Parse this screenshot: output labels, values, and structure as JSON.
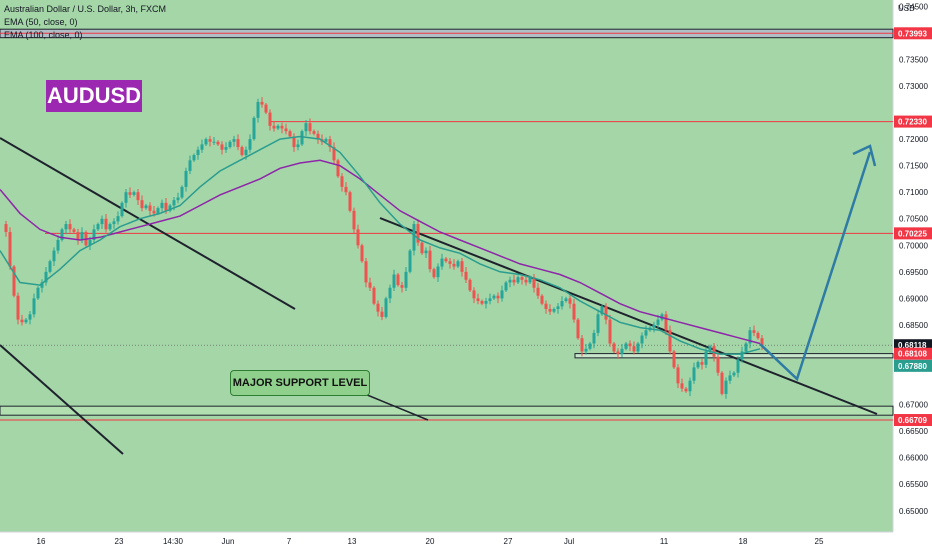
{
  "legend": {
    "title": "Australian Dollar / U.S. Dollar, 3h, FXCM",
    "ema50": "EMA (50, close, 0)",
    "ema100": "EMA (100, close, 0)"
  },
  "symbol_badge": "AUDUSD",
  "annotation": "MAJOR SUPPORT LEVEL",
  "currency": "USD",
  "countdown": "02:30:06",
  "colors": {
    "bullish": "#26a69a",
    "bearish": "#ef5350",
    "ema50": "#2a9d8f",
    "ema100": "#8e24aa",
    "level": "#f23645",
    "trendline": "#1e222d",
    "arrow": "#2e7ba5",
    "background": "#a5d6a7"
  },
  "chart_data": {
    "type": "candlestick",
    "ylim": [
      0.646,
      0.7462
    ],
    "y_ticks": [
      "0.74500",
      "0.73500",
      "0.73000",
      "0.72000",
      "0.71500",
      "0.71000",
      "0.70500",
      "0.70000",
      "0.69500",
      "0.69000",
      "0.68500",
      "0.68000",
      "0.67000",
      "0.66500",
      "0.66000",
      "0.65500",
      "0.65000"
    ],
    "x_ticks": [
      "16",
      "23",
      "14:30",
      "Jun",
      "7",
      "13",
      "20",
      "27",
      "Jul",
      "11",
      "18",
      "25"
    ],
    "price_labels": [
      {
        "text": "0.73993",
        "value": 0.73993,
        "color": "#f23645"
      },
      {
        "text": "0.72330",
        "value": 0.7233,
        "color": "#f23645"
      },
      {
        "text": "0.70225",
        "value": 0.70225,
        "color": "#f23645"
      },
      {
        "text": "0.68118",
        "value": 0.68118,
        "color": "#131722"
      },
      {
        "text": "0.68108",
        "value": 0.68108,
        "color": "#f23645"
      },
      {
        "text": "0.67880",
        "value": 0.6788,
        "color": "#2a9d8f"
      },
      {
        "text": "0.66709",
        "value": 0.66709,
        "color": "#f23645"
      }
    ],
    "levels": [
      0.73993,
      0.7233,
      0.70225,
      0.66709
    ],
    "support_zone": [
      0.6788,
      0.6796
    ],
    "lower_band": [
      0.668,
      0.6697
    ],
    "top_band": [
      0.7391,
      0.7407
    ],
    "current_price": 0.68118,
    "price_path": [
      [
        0,
        0.704
      ],
      [
        4,
        0.7025
      ],
      [
        8,
        0.696
      ],
      [
        12,
        0.6905
      ],
      [
        16,
        0.686
      ],
      [
        20,
        0.6855
      ],
      [
        24,
        0.686
      ],
      [
        28,
        0.687
      ],
      [
        32,
        0.69
      ],
      [
        36,
        0.692
      ],
      [
        40,
        0.693
      ],
      [
        44,
        0.695
      ],
      [
        48,
        0.697
      ],
      [
        52,
        0.699
      ],
      [
        56,
        0.701
      ],
      [
        60,
        0.703
      ],
      [
        64,
        0.704
      ],
      [
        68,
        0.703
      ],
      [
        72,
        0.7025
      ],
      [
        76,
        0.701
      ],
      [
        80,
        0.7025
      ],
      [
        84,
        0.7
      ],
      [
        88,
        0.701
      ],
      [
        92,
        0.703
      ],
      [
        96,
        0.704
      ],
      [
        100,
        0.705
      ],
      [
        104,
        0.703
      ],
      [
        108,
        0.704
      ],
      [
        112,
        0.7045
      ],
      [
        116,
        0.7055
      ],
      [
        120,
        0.708
      ],
      [
        124,
        0.71
      ],
      [
        128,
        0.7095
      ],
      [
        132,
        0.71
      ],
      [
        136,
        0.7085
      ],
      [
        140,
        0.707
      ],
      [
        144,
        0.7075
      ],
      [
        148,
        0.7065
      ],
      [
        152,
        0.706
      ],
      [
        156,
        0.707
      ],
      [
        160,
        0.708
      ],
      [
        164,
        0.7065
      ],
      [
        168,
        0.7075
      ],
      [
        172,
        0.7085
      ],
      [
        176,
        0.709
      ],
      [
        180,
        0.711
      ],
      [
        184,
        0.714
      ],
      [
        188,
        0.716
      ],
      [
        192,
        0.717
      ],
      [
        196,
        0.718
      ],
      [
        200,
        0.719
      ],
      [
        204,
        0.72
      ],
      [
        208,
        0.7195
      ],
      [
        212,
        0.7195
      ],
      [
        216,
        0.719
      ],
      [
        220,
        0.718
      ],
      [
        224,
        0.7185
      ],
      [
        228,
        0.7195
      ],
      [
        232,
        0.72
      ],
      [
        236,
        0.7185
      ],
      [
        240,
        0.717
      ],
      [
        244,
        0.718
      ],
      [
        248,
        0.72
      ],
      [
        252,
        0.724
      ],
      [
        256,
        0.727
      ],
      [
        260,
        0.7265
      ],
      [
        264,
        0.725
      ],
      [
        268,
        0.7225
      ],
      [
        272,
        0.722
      ],
      [
        276,
        0.7225
      ],
      [
        280,
        0.722
      ],
      [
        284,
        0.7215
      ],
      [
        288,
        0.7205
      ],
      [
        292,
        0.7185
      ],
      [
        296,
        0.719
      ],
      [
        300,
        0.7215
      ],
      [
        304,
        0.723
      ],
      [
        308,
        0.7215
      ],
      [
        312,
        0.721
      ],
      [
        316,
        0.72
      ],
      [
        320,
        0.7195
      ],
      [
        324,
        0.72
      ],
      [
        328,
        0.7185
      ],
      [
        332,
        0.716
      ],
      [
        336,
        0.713
      ],
      [
        340,
        0.711
      ],
      [
        344,
        0.71
      ],
      [
        348,
        0.7065
      ],
      [
        352,
        0.703
      ],
      [
        356,
        0.7
      ],
      [
        360,
        0.697
      ],
      [
        364,
        0.693
      ],
      [
        368,
        0.692
      ],
      [
        372,
        0.689
      ],
      [
        376,
        0.6875
      ],
      [
        380,
        0.6865
      ],
      [
        384,
        0.69
      ],
      [
        388,
        0.692
      ],
      [
        392,
        0.6945
      ],
      [
        396,
        0.6925
      ],
      [
        400,
        0.692
      ],
      [
        404,
        0.695
      ],
      [
        408,
        0.699
      ],
      [
        412,
        0.704
      ],
      [
        416,
        0.7005
      ],
      [
        420,
        0.6985
      ],
      [
        424,
        0.699
      ],
      [
        428,
        0.6955
      ],
      [
        432,
        0.694
      ],
      [
        436,
        0.696
      ],
      [
        440,
        0.6975
      ],
      [
        444,
        0.697
      ],
      [
        448,
        0.6965
      ],
      [
        452,
        0.696
      ],
      [
        456,
        0.697
      ],
      [
        460,
        0.695
      ],
      [
        464,
        0.6935
      ],
      [
        468,
        0.6915
      ],
      [
        472,
        0.69
      ],
      [
        476,
        0.6895
      ],
      [
        480,
        0.689
      ],
      [
        484,
        0.6895
      ],
      [
        488,
        0.69
      ],
      [
        492,
        0.6905
      ],
      [
        496,
        0.69
      ],
      [
        500,
        0.6915
      ],
      [
        504,
        0.693
      ],
      [
        508,
        0.6935
      ],
      [
        512,
        0.693
      ],
      [
        516,
        0.694
      ],
      [
        520,
        0.6935
      ],
      [
        524,
        0.693
      ],
      [
        528,
        0.694
      ],
      [
        532,
        0.692
      ],
      [
        536,
        0.6905
      ],
      [
        540,
        0.689
      ],
      [
        544,
        0.688
      ],
      [
        548,
        0.6875
      ],
      [
        552,
        0.688
      ],
      [
        556,
        0.6885
      ],
      [
        560,
        0.6895
      ],
      [
        564,
        0.69
      ],
      [
        568,
        0.689
      ],
      [
        572,
        0.686
      ],
      [
        576,
        0.6825
      ],
      [
        580,
        0.68
      ],
      [
        584,
        0.6805
      ],
      [
        588,
        0.6815
      ],
      [
        592,
        0.6835
      ],
      [
        596,
        0.687
      ],
      [
        600,
        0.6885
      ],
      [
        604,
        0.686
      ],
      [
        608,
        0.6815
      ],
      [
        612,
        0.68
      ],
      [
        616,
        0.6795
      ],
      [
        620,
        0.6805
      ],
      [
        624,
        0.6815
      ],
      [
        628,
        0.681
      ],
      [
        632,
        0.68
      ],
      [
        636,
        0.6815
      ],
      [
        640,
        0.683
      ],
      [
        644,
        0.684
      ],
      [
        648,
        0.6845
      ],
      [
        652,
        0.685
      ],
      [
        656,
        0.686
      ],
      [
        660,
        0.687
      ],
      [
        664,
        0.684
      ],
      [
        668,
        0.68
      ],
      [
        672,
        0.677
      ],
      [
        676,
        0.674
      ],
      [
        680,
        0.673
      ],
      [
        684,
        0.6725
      ],
      [
        688,
        0.6745
      ],
      [
        692,
        0.677
      ],
      [
        696,
        0.678
      ],
      [
        700,
        0.6775
      ],
      [
        704,
        0.68
      ],
      [
        708,
        0.681
      ],
      [
        712,
        0.679
      ],
      [
        716,
        0.676
      ],
      [
        720,
        0.672
      ],
      [
        724,
        0.6745
      ],
      [
        728,
        0.6755
      ],
      [
        732,
        0.676
      ],
      [
        736,
        0.6785
      ],
      [
        740,
        0.68
      ],
      [
        744,
        0.6815
      ],
      [
        748,
        0.684
      ],
      [
        752,
        0.6835
      ],
      [
        756,
        0.6825
      ],
      [
        760,
        0.68118
      ]
    ],
    "ema50": [
      [
        0,
        0.699
      ],
      [
        20,
        0.693
      ],
      [
        40,
        0.6925
      ],
      [
        60,
        0.6955
      ],
      [
        80,
        0.699
      ],
      [
        100,
        0.701
      ],
      [
        120,
        0.7035
      ],
      [
        140,
        0.705
      ],
      [
        160,
        0.706
      ],
      [
        180,
        0.7075
      ],
      [
        200,
        0.711
      ],
      [
        220,
        0.714
      ],
      [
        240,
        0.716
      ],
      [
        260,
        0.718
      ],
      [
        280,
        0.72
      ],
      [
        300,
        0.7205
      ],
      [
        320,
        0.72
      ],
      [
        340,
        0.7175
      ],
      [
        360,
        0.713
      ],
      [
        380,
        0.708
      ],
      [
        400,
        0.704
      ],
      [
        420,
        0.701
      ],
      [
        440,
        0.6995
      ],
      [
        460,
        0.6985
      ],
      [
        480,
        0.6965
      ],
      [
        500,
        0.695
      ],
      [
        520,
        0.6945
      ],
      [
        540,
        0.6935
      ],
      [
        560,
        0.692
      ],
      [
        580,
        0.6895
      ],
      [
        600,
        0.6875
      ],
      [
        620,
        0.6855
      ],
      [
        640,
        0.6845
      ],
      [
        660,
        0.684
      ],
      [
        680,
        0.682
      ],
      [
        700,
        0.6805
      ],
      [
        720,
        0.6795
      ],
      [
        740,
        0.6795
      ],
      [
        760,
        0.6805
      ]
    ],
    "ema100": [
      [
        0,
        0.7105
      ],
      [
        20,
        0.706
      ],
      [
        40,
        0.703
      ],
      [
        60,
        0.7015
      ],
      [
        80,
        0.701
      ],
      [
        100,
        0.7015
      ],
      [
        120,
        0.7025
      ],
      [
        140,
        0.7035
      ],
      [
        160,
        0.7045
      ],
      [
        180,
        0.7055
      ],
      [
        200,
        0.7075
      ],
      [
        220,
        0.7095
      ],
      [
        240,
        0.711
      ],
      [
        260,
        0.7125
      ],
      [
        280,
        0.7145
      ],
      [
        300,
        0.7155
      ],
      [
        320,
        0.716
      ],
      [
        340,
        0.715
      ],
      [
        360,
        0.7125
      ],
      [
        380,
        0.7095
      ],
      [
        400,
        0.7065
      ],
      [
        420,
        0.7045
      ],
      [
        440,
        0.7025
      ],
      [
        460,
        0.701
      ],
      [
        480,
        0.6995
      ],
      [
        500,
        0.698
      ],
      [
        520,
        0.6965
      ],
      [
        540,
        0.6955
      ],
      [
        560,
        0.6945
      ],
      [
        580,
        0.693
      ],
      [
        600,
        0.691
      ],
      [
        620,
        0.689
      ],
      [
        640,
        0.6875
      ],
      [
        660,
        0.6865
      ],
      [
        680,
        0.6855
      ],
      [
        700,
        0.6845
      ],
      [
        720,
        0.6835
      ],
      [
        740,
        0.6825
      ],
      [
        760,
        0.6815
      ]
    ]
  }
}
